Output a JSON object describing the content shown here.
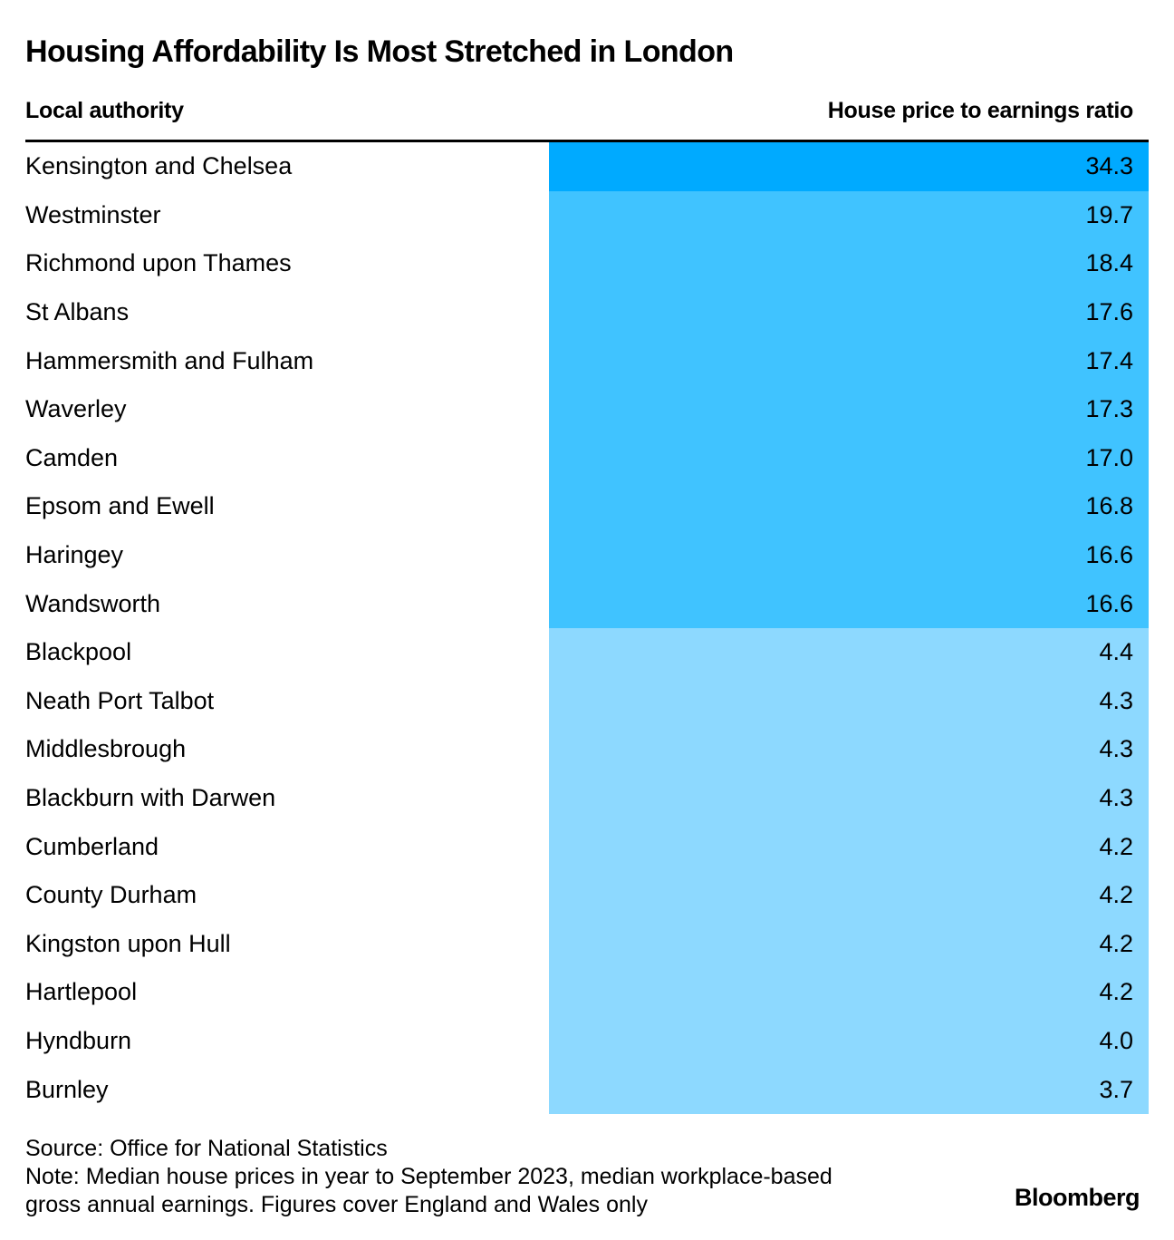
{
  "title": "Housing Affordability Is Most Stretched in London",
  "headers": {
    "left": "Local authority",
    "right": "House price to earnings ratio"
  },
  "colors": {
    "top": "#00aaff",
    "high": "#40c3ff",
    "low": "#8dd9ff"
  },
  "chart_data": {
    "type": "table",
    "title": "Housing Affordability Is Most Stretched in London",
    "columns": [
      "Local authority",
      "House price to earnings ratio"
    ],
    "rows": [
      {
        "name": "Kensington and Chelsea",
        "value": "34.3",
        "tier": "top"
      },
      {
        "name": "Westminster",
        "value": "19.7",
        "tier": "high"
      },
      {
        "name": "Richmond upon Thames",
        "value": "18.4",
        "tier": "high"
      },
      {
        "name": "St Albans",
        "value": "17.6",
        "tier": "high"
      },
      {
        "name": "Hammersmith and Fulham",
        "value": "17.4",
        "tier": "high"
      },
      {
        "name": "Waverley",
        "value": "17.3",
        "tier": "high"
      },
      {
        "name": "Camden",
        "value": "17.0",
        "tier": "high"
      },
      {
        "name": "Epsom and Ewell",
        "value": "16.8",
        "tier": "high"
      },
      {
        "name": "Haringey",
        "value": "16.6",
        "tier": "high"
      },
      {
        "name": "Wandsworth",
        "value": "16.6",
        "tier": "high"
      },
      {
        "name": "Blackpool",
        "value": "4.4",
        "tier": "low"
      },
      {
        "name": "Neath Port Talbot",
        "value": "4.3",
        "tier": "low"
      },
      {
        "name": "Middlesbrough",
        "value": "4.3",
        "tier": "low"
      },
      {
        "name": "Blackburn with Darwen",
        "value": "4.3",
        "tier": "low"
      },
      {
        "name": "Cumberland",
        "value": "4.2",
        "tier": "low"
      },
      {
        "name": "County Durham",
        "value": "4.2",
        "tier": "low"
      },
      {
        "name": "Kingston upon Hull",
        "value": "4.2",
        "tier": "low"
      },
      {
        "name": "Hartlepool",
        "value": "4.2",
        "tier": "low"
      },
      {
        "name": "Hyndburn",
        "value": "4.0",
        "tier": "low"
      },
      {
        "name": "Burnley",
        "value": "3.7",
        "tier": "low"
      }
    ]
  },
  "footer": {
    "source": "Source: Office for National Statistics",
    "note_line1": "Note: Median house prices in year to September 2023, median workplace-based",
    "note_line2": "gross annual earnings. Figures cover England and Wales only"
  },
  "brand": "Bloomberg"
}
